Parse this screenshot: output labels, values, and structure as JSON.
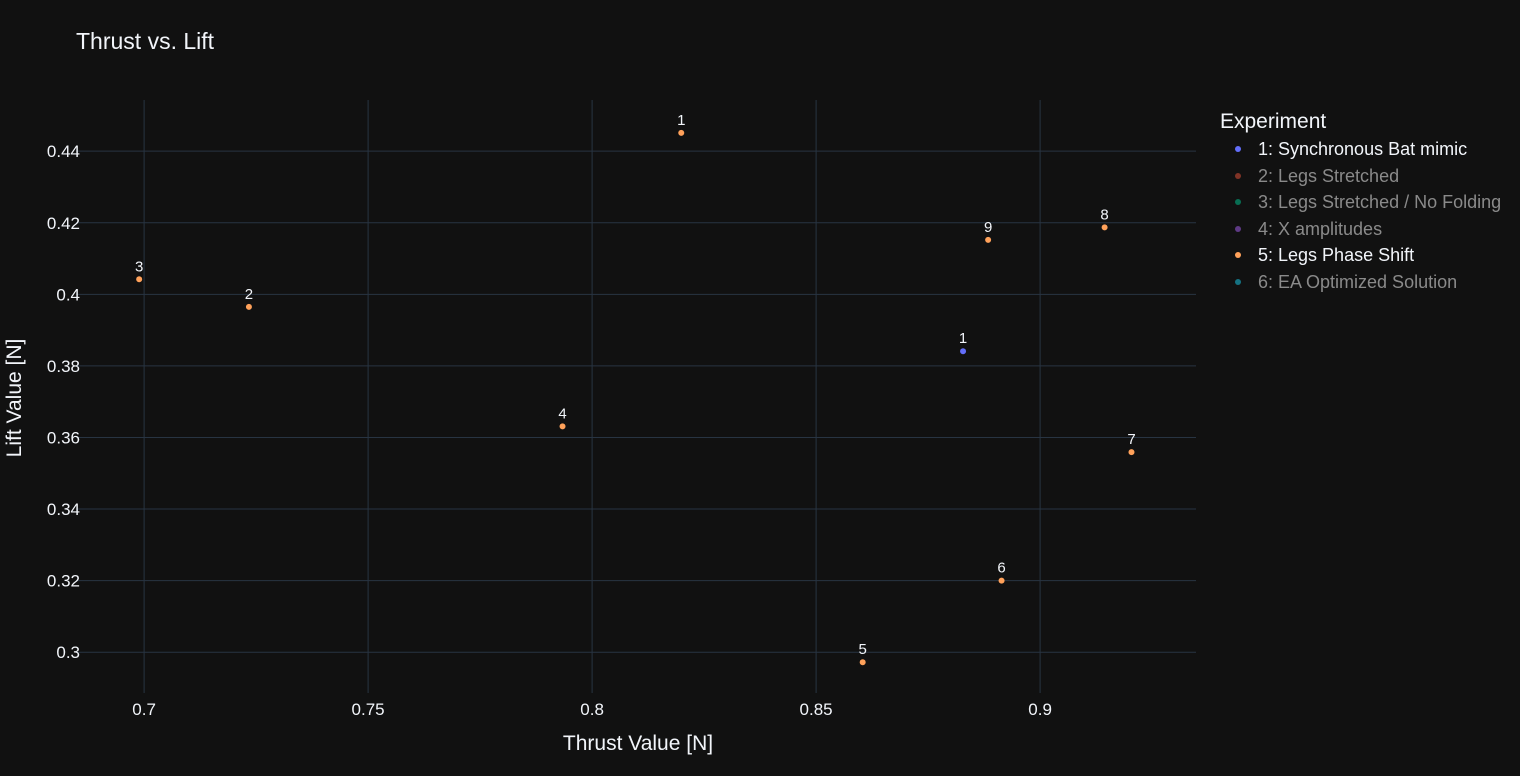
{
  "chart_data": {
    "type": "scatter",
    "title": "Thrust vs. Lift",
    "xlabel": "Thrust Value [N]",
    "ylabel": "Lift Value [N]",
    "xlim": [
      0.6848,
      0.9348
    ],
    "ylim": [
      0.2886,
      0.4543
    ],
    "x_ticks": [
      "0.7",
      "0.75",
      "0.8",
      "0.85",
      "0.9"
    ],
    "y_ticks": [
      "0.3",
      "0.32",
      "0.34",
      "0.36",
      "0.38",
      "0.4",
      "0.42",
      "0.44"
    ],
    "grid": true,
    "legend_position": "right",
    "legend_title": "Experiment",
    "series": [
      {
        "name": "1: Synchronous Bat mimic",
        "color": "#636efa",
        "visible": true,
        "points": [
          {
            "label": "1",
            "x": 0.8828,
            "y": 0.3841
          }
        ]
      },
      {
        "name": "2: Legs Stretched",
        "color": "#ef553b",
        "visible": false,
        "points": []
      },
      {
        "name": "3: Legs Stretched / No Folding",
        "color": "#00cc96",
        "visible": false,
        "points": []
      },
      {
        "name": "4: X amplitudes",
        "color": "#ab63fa",
        "visible": false,
        "points": []
      },
      {
        "name": "5: Legs Phase Shift",
        "color": "#ffa15a",
        "visible": true,
        "points": [
          {
            "label": "1",
            "x": 0.8199,
            "y": 0.4451
          },
          {
            "label": "2",
            "x": 0.7234,
            "y": 0.3965
          },
          {
            "label": "3",
            "x": 0.6989,
            "y": 0.4042
          },
          {
            "label": "4",
            "x": 0.7934,
            "y": 0.3631
          },
          {
            "label": "5",
            "x": 0.8604,
            "y": 0.2972
          },
          {
            "label": "6",
            "x": 0.8914,
            "y": 0.32
          },
          {
            "label": "7",
            "x": 0.9204,
            "y": 0.3559
          },
          {
            "label": "8",
            "x": 0.9144,
            "y": 0.4187
          },
          {
            "label": "9",
            "x": 0.8884,
            "y": 0.4152
          }
        ]
      },
      {
        "name": "6: EA Optimized Solution",
        "color": "#19d3f3",
        "visible": false,
        "points": []
      }
    ]
  }
}
